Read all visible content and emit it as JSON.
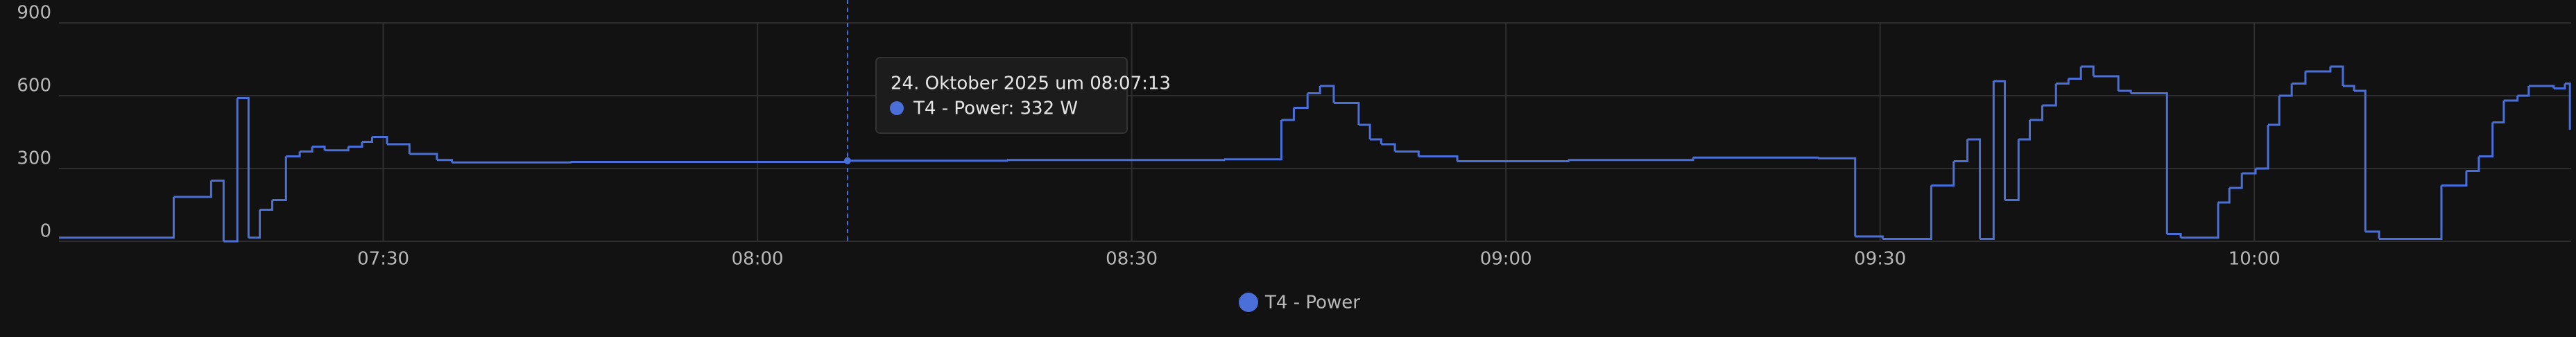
{
  "chart_data": {
    "type": "line",
    "step": true,
    "series": [
      {
        "name": "T4 - Power",
        "color": "#4a6fd8",
        "x": [
          424,
          433.2,
          436.2,
          437.2,
          438.3,
          439.2,
          440.1,
          441.1,
          442.2,
          443.3,
          444.3,
          445.3,
          447.2,
          448.3,
          449.1,
          450.3,
          452.1,
          454.3,
          455.5,
          465,
          487,
          500,
          517.4,
          522,
          523,
          524.1,
          525.1,
          526.2,
          528.2,
          529.1,
          530,
          531.1,
          533,
          536.1,
          545,
          555,
          565,
          568,
          570.2,
          574.1,
          575.9,
          577,
          578,
          579.1,
          580,
          581.1,
          582,
          583,
          584.1,
          585.1,
          586.1,
          587.1,
          589.1,
          590.1,
          593,
          594.1,
          597.1,
          598,
          599,
          600.1,
          601.1,
          602,
          603,
          604.1,
          606.1,
          607.1,
          608,
          608.9,
          610,
          615,
          617,
          618,
          619.1,
          620,
          621.1,
          622,
          624,
          624.9,
          625.3
        ],
        "values": [
          15,
          183,
          250,
          0,
          590,
          15,
          130,
          170,
          350,
          370,
          390,
          375,
          390,
          410,
          430,
          400,
          360,
          335,
          325,
          327,
          332,
          335,
          338,
          500,
          550,
          610,
          640,
          570,
          480,
          420,
          400,
          370,
          350,
          330,
          335,
          345,
          342,
          20,
          10,
          230,
          330,
          420,
          10,
          660,
          170,
          420,
          500,
          560,
          650,
          670,
          720,
          680,
          620,
          610,
          30,
          15,
          160,
          220,
          280,
          300,
          480,
          600,
          650,
          700,
          720,
          640,
          620,
          40,
          10,
          230,
          290,
          350,
          490,
          580,
          600,
          640,
          630,
          650,
          460
        ]
      }
    ],
    "xlim": [
      424,
      625.4
    ],
    "xticks": [
      {
        "value": 450,
        "label": "07:30"
      },
      {
        "value": 480,
        "label": "08:00"
      },
      {
        "value": 510,
        "label": "08:30"
      },
      {
        "value": 540,
        "label": "09:00"
      },
      {
        "value": 570,
        "label": "09:30"
      },
      {
        "value": 600,
        "label": "10:00"
      }
    ],
    "ylim": [
      0,
      900
    ],
    "yticks": [
      0,
      300,
      600,
      900
    ],
    "grid": true,
    "tooltip": {
      "x": 487.22,
      "value": 332,
      "title": "24. Oktober 2025 um 08:07:13",
      "text": "T4 - Power: 332 W"
    }
  }
}
